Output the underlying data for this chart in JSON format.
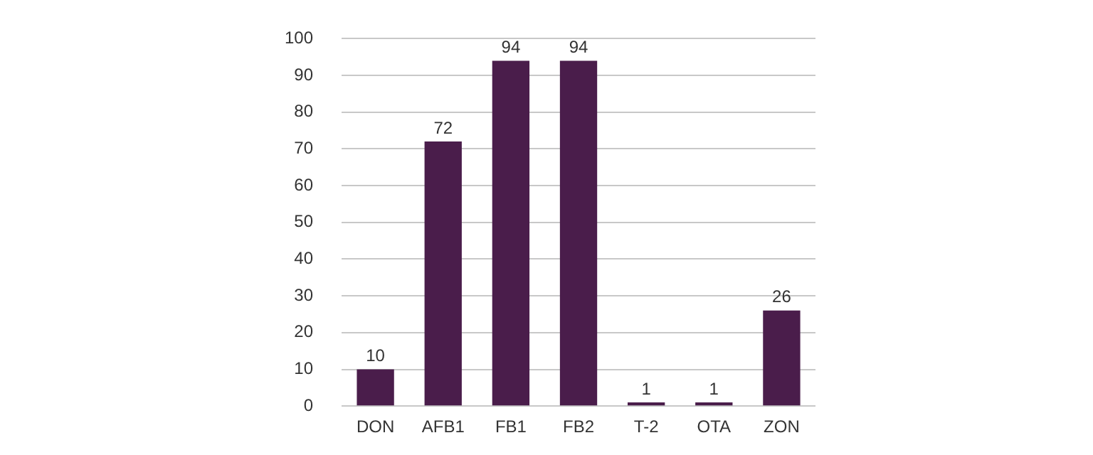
{
  "chart_data": {
    "type": "bar",
    "categories": [
      "DON",
      "AFB1",
      "FB1",
      "FB2",
      "T-2",
      "OTA",
      "ZON"
    ],
    "values": [
      10,
      72,
      94,
      94,
      1,
      1,
      26
    ],
    "color": "#4a1d4b",
    "ylim": [
      0,
      100
    ],
    "yticks": [
      0,
      10,
      20,
      30,
      40,
      50,
      60,
      70,
      80,
      90,
      100
    ],
    "grid": "y",
    "data_labels": true
  }
}
